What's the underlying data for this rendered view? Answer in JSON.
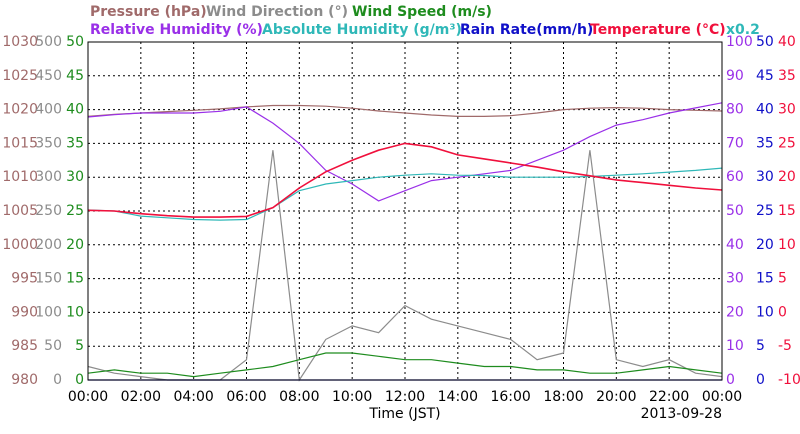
{
  "chart_data": {
    "type": "line",
    "xlabel": "Time (JST)",
    "date": "2013-09-28",
    "scale_note": "x0.2",
    "grid": true,
    "x": [
      0,
      1,
      2,
      3,
      4,
      5,
      6,
      7,
      8,
      9,
      10,
      11,
      12,
      13,
      14,
      15,
      16,
      17,
      18,
      19,
      20,
      21,
      22,
      23,
      24
    ],
    "xlim": [
      0,
      24
    ],
    "xticks": [
      {
        "value": 0,
        "label": "00:00"
      },
      {
        "value": 2,
        "label": "02:00"
      },
      {
        "value": 4,
        "label": "04:00"
      },
      {
        "value": 6,
        "label": "06:00"
      },
      {
        "value": 8,
        "label": "08:00"
      },
      {
        "value": 10,
        "label": "10:00"
      },
      {
        "value": 12,
        "label": "12:00"
      },
      {
        "value": 14,
        "label": "14:00"
      },
      {
        "value": 16,
        "label": "16:00"
      },
      {
        "value": 18,
        "label": "18:00"
      },
      {
        "value": 20,
        "label": "20:00"
      },
      {
        "value": 22,
        "label": "22:00"
      },
      {
        "value": 24,
        "label": "00:00"
      }
    ],
    "series": [
      {
        "name": "Pressure (hPa)",
        "color": "#a06a6a",
        "side": "left",
        "ylim": [
          980,
          1030
        ],
        "yticks": [
          980,
          985,
          990,
          995,
          1000,
          1005,
          1010,
          1015,
          1020,
          1025,
          1030
        ],
        "values": [
          1019,
          1019.3,
          1019.5,
          1019.7,
          1019.9,
          1020.1,
          1020.4,
          1020.6,
          1020.6,
          1020.5,
          1020.2,
          1019.8,
          1019.5,
          1019.2,
          1019,
          1019,
          1019.1,
          1019.5,
          1020,
          1020.2,
          1020.3,
          1020.2,
          1020,
          1019.9,
          1019.8
        ]
      },
      {
        "name": "Wind Direction (°)",
        "color": "#8c8c8c",
        "side": "left",
        "ylim": [
          0,
          500
        ],
        "yticks": [
          0,
          50,
          100,
          150,
          200,
          250,
          300,
          350,
          400,
          450,
          500
        ],
        "values": [
          20,
          10,
          5,
          0,
          0,
          0,
          30,
          340,
          0,
          60,
          80,
          70,
          110,
          90,
          80,
          70,
          60,
          30,
          40,
          340,
          30,
          20,
          30,
          10,
          5
        ]
      },
      {
        "name": "Wind Speed (m/s)",
        "color": "#1e8c1e",
        "side": "left",
        "ylim": [
          0,
          50
        ],
        "yticks": [
          0,
          5,
          10,
          15,
          20,
          25,
          30,
          35,
          40,
          45,
          50
        ],
        "values": [
          1,
          1.5,
          1,
          1,
          0.5,
          1,
          1.5,
          2,
          3,
          4,
          4,
          3.5,
          3,
          3,
          2.5,
          2,
          2,
          1.5,
          1.5,
          1,
          1,
          1.5,
          2,
          1.5,
          1
        ]
      },
      {
        "name": "Relative Humidity (%)",
        "color": "#9a30e8",
        "side": "right",
        "ylim": [
          0,
          100
        ],
        "yticks": [
          0,
          10,
          20,
          30,
          40,
          50,
          60,
          70,
          80,
          90,
          100
        ],
        "values": [
          77.8,
          78.5,
          79,
          79,
          79,
          79.5,
          80.8,
          76,
          70,
          62,
          58,
          53,
          56,
          59,
          60,
          61,
          62,
          65,
          68,
          72,
          75.4,
          77,
          79,
          80.5,
          82
        ]
      },
      {
        "name": "Absolute Humidity (g/m³)",
        "color": "#2fb8b8",
        "values": [
          50.3,
          50,
          48.5,
          48,
          47.5,
          47.3,
          47.5,
          51,
          56,
          58,
          59,
          60,
          60.6,
          61,
          60.6,
          60.5,
          60,
          60,
          60,
          60.2,
          60.6,
          61,
          61.5,
          62,
          62.7
        ]
      },
      {
        "name": "Rain Rate(mm/h)",
        "color": "#1010c8",
        "side": "right",
        "ylim": [
          0,
          50
        ],
        "yticks": [
          0,
          5,
          10,
          15,
          20,
          25,
          30,
          35,
          40,
          45,
          50
        ],
        "values": [
          0,
          0,
          0,
          0,
          0,
          0,
          0,
          0,
          0,
          0,
          0,
          0,
          0,
          0,
          0,
          0,
          0,
          0,
          0,
          0,
          0,
          0,
          0,
          0,
          0
        ]
      },
      {
        "name": "Temperature (°C)",
        "color": "#f0103c",
        "side": "right",
        "ylim": [
          -10,
          40
        ],
        "yticks": [
          -10,
          -5,
          0,
          5,
          10,
          15,
          20,
          25,
          30,
          35,
          40
        ],
        "values": [
          15.1,
          15,
          14.6,
          14.3,
          14.1,
          14.1,
          14.2,
          15.5,
          18.4,
          20.8,
          22.5,
          24,
          25,
          24.5,
          23.3,
          22.7,
          22.1,
          21.5,
          20.8,
          20.2,
          19.6,
          19.2,
          18.8,
          18.4,
          18.1
        ]
      }
    ]
  }
}
